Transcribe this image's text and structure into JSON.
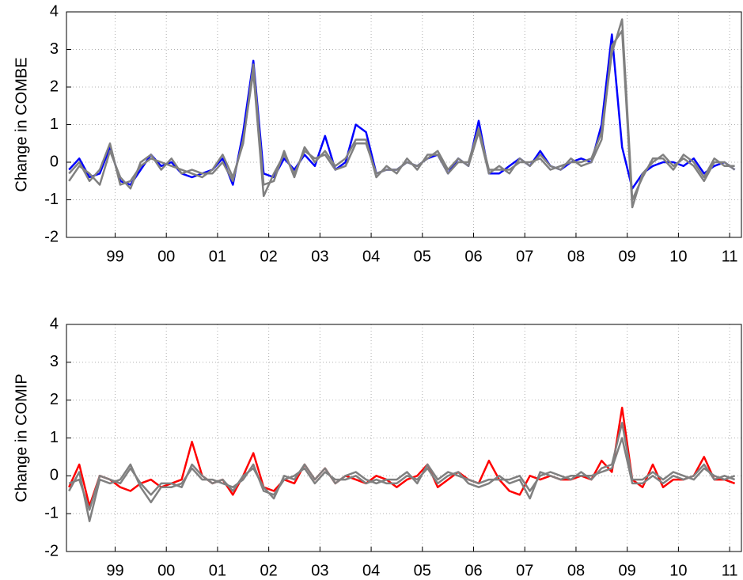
{
  "chart_data": [
    {
      "type": "line",
      "ylabel": "Change in COMBE",
      "x": [
        1998.1,
        1998.3,
        1998.5,
        1998.7,
        1998.9,
        1999.1,
        1999.3,
        1999.5,
        1999.7,
        1999.9,
        2000.1,
        2000.3,
        2000.5,
        2000.7,
        2000.9,
        2001.1,
        2001.3,
        2001.5,
        2001.7,
        2001.9,
        2002.1,
        2002.3,
        2002.5,
        2002.7,
        2002.9,
        2003.1,
        2003.3,
        2003.5,
        2003.7,
        2003.9,
        2004.1,
        2004.3,
        2004.5,
        2004.7,
        2004.9,
        2005.1,
        2005.3,
        2005.5,
        2005.7,
        2005.9,
        2006.1,
        2006.3,
        2006.5,
        2006.7,
        2006.9,
        2007.1,
        2007.3,
        2007.5,
        2007.7,
        2007.9,
        2008.1,
        2008.3,
        2008.5,
        2008.7,
        2008.9,
        2009.1,
        2009.3,
        2009.5,
        2009.7,
        2009.9,
        2010.1,
        2010.3,
        2010.5,
        2010.7,
        2010.9,
        2011.1
      ],
      "series": [
        {
          "color": "#0000ff",
          "values": [
            -0.2,
            0.1,
            -0.4,
            -0.3,
            0.4,
            -0.5,
            -0.6,
            -0.2,
            0.2,
            -0.1,
            0.0,
            -0.3,
            -0.4,
            -0.3,
            -0.2,
            0.1,
            -0.6,
            0.8,
            2.7,
            -0.3,
            -0.4,
            0.1,
            -0.2,
            0.2,
            -0.1,
            0.7,
            -0.2,
            0.0,
            1.0,
            0.8,
            -0.3,
            -0.2,
            -0.2,
            0.0,
            -0.1,
            0.1,
            0.2,
            -0.3,
            0.1,
            -0.1,
            1.1,
            -0.3,
            -0.3,
            -0.1,
            0.1,
            -0.1,
            0.3,
            -0.1,
            -0.2,
            0.0,
            0.1,
            0.0,
            1.0,
            3.4,
            0.4,
            -0.7,
            -0.3,
            -0.1,
            0.0,
            0.0,
            -0.1,
            0.1,
            -0.3,
            -0.1,
            0.0,
            -0.2
          ]
        },
        {
          "color": "#808080",
          "values": [
            -0.3,
            0.0,
            -0.5,
            -0.2,
            0.5,
            -0.6,
            -0.5,
            -0.1,
            0.1,
            0.0,
            -0.1,
            -0.2,
            -0.3,
            -0.4,
            -0.2,
            0.2,
            -0.4,
            0.5,
            2.6,
            -0.6,
            -0.5,
            0.3,
            -0.4,
            0.4,
            0.0,
            0.3,
            -0.1,
            0.1,
            0.6,
            0.6,
            -0.4,
            -0.1,
            -0.3,
            0.1,
            -0.2,
            0.2,
            0.2,
            -0.3,
            0.0,
            0.0,
            0.9,
            -0.2,
            -0.2,
            -0.2,
            0.0,
            0.0,
            0.1,
            -0.2,
            -0.1,
            0.0,
            0.0,
            0.1,
            0.8,
            2.9,
            3.8,
            -1.0,
            -0.4,
            0.1,
            0.1,
            -0.2,
            0.2,
            0.0,
            -0.4,
            0.1,
            -0.1,
            -0.1
          ]
        },
        {
          "color": "#808080",
          "values": [
            -0.5,
            -0.1,
            -0.3,
            -0.6,
            0.3,
            -0.4,
            -0.7,
            0.0,
            0.2,
            -0.2,
            0.1,
            -0.3,
            -0.2,
            -0.3,
            -0.3,
            0.0,
            -0.5,
            0.6,
            2.4,
            -0.9,
            -0.3,
            0.2,
            -0.3,
            0.3,
            0.1,
            0.2,
            -0.2,
            -0.1,
            0.5,
            0.5,
            -0.3,
            -0.2,
            -0.2,
            0.0,
            -0.1,
            0.1,
            0.3,
            -0.2,
            0.1,
            -0.1,
            0.8,
            -0.3,
            -0.1,
            -0.3,
            0.1,
            -0.1,
            0.2,
            -0.1,
            -0.2,
            0.1,
            -0.1,
            0.0,
            0.6,
            3.1,
            3.5,
            -1.2,
            -0.3,
            0.0,
            0.2,
            -0.1,
            0.1,
            -0.1,
            -0.5,
            0.0,
            0.0,
            -0.2
          ]
        }
      ],
      "xlim": [
        1998.05,
        2011.23
      ],
      "xticks": [
        {
          "value": 1999,
          "label": "99"
        },
        {
          "value": 2000,
          "label": "00"
        },
        {
          "value": 2001,
          "label": "01"
        },
        {
          "value": 2002,
          "label": "02"
        },
        {
          "value": 2003,
          "label": "03"
        },
        {
          "value": 2004,
          "label": "04"
        },
        {
          "value": 2005,
          "label": "05"
        },
        {
          "value": 2006,
          "label": "06"
        },
        {
          "value": 2007,
          "label": "07"
        },
        {
          "value": 2008,
          "label": "08"
        },
        {
          "value": 2009,
          "label": "09"
        },
        {
          "value": 2010,
          "label": "10"
        },
        {
          "value": 2011,
          "label": "11"
        }
      ],
      "ylim": [
        -2,
        4
      ],
      "yticks": [
        -2,
        -1,
        0,
        1,
        2,
        3,
        4
      ],
      "grid": true
    },
    {
      "type": "line",
      "ylabel": "Change in COMIP",
      "x": [
        1998.1,
        1998.3,
        1998.5,
        1998.7,
        1998.9,
        1999.1,
        1999.3,
        1999.5,
        1999.7,
        1999.9,
        2000.1,
        2000.3,
        2000.5,
        2000.7,
        2000.9,
        2001.1,
        2001.3,
        2001.5,
        2001.7,
        2001.9,
        2002.1,
        2002.3,
        2002.5,
        2002.7,
        2002.9,
        2003.1,
        2003.3,
        2003.5,
        2003.7,
        2003.9,
        2004.1,
        2004.3,
        2004.5,
        2004.7,
        2004.9,
        2005.1,
        2005.3,
        2005.5,
        2005.7,
        2005.9,
        2006.1,
        2006.3,
        2006.5,
        2006.7,
        2006.9,
        2007.1,
        2007.3,
        2007.5,
        2007.7,
        2007.9,
        2008.1,
        2008.3,
        2008.5,
        2008.7,
        2008.9,
        2009.1,
        2009.3,
        2009.5,
        2009.7,
        2009.9,
        2010.1,
        2010.3,
        2010.5,
        2010.7,
        2010.9,
        2011.1
      ],
      "series": [
        {
          "color": "#ff0000",
          "values": [
            -0.3,
            0.3,
            -0.8,
            0.0,
            -0.1,
            -0.3,
            -0.4,
            -0.2,
            -0.1,
            -0.3,
            -0.2,
            -0.1,
            0.9,
            0.0,
            -0.2,
            -0.1,
            -0.5,
            0.0,
            0.6,
            -0.3,
            -0.4,
            -0.1,
            -0.2,
            0.3,
            -0.1,
            0.2,
            -0.2,
            0.0,
            -0.1,
            -0.2,
            0.0,
            -0.1,
            -0.3,
            -0.1,
            0.0,
            0.3,
            -0.3,
            -0.1,
            0.1,
            -0.1,
            -0.2,
            0.4,
            -0.1,
            -0.4,
            -0.5,
            0.0,
            -0.1,
            0.0,
            -0.1,
            -0.1,
            0.0,
            -0.1,
            0.4,
            0.1,
            1.8,
            -0.1,
            -0.3,
            0.3,
            -0.3,
            -0.1,
            -0.1,
            0.0,
            0.5,
            -0.1,
            -0.1,
            -0.2
          ]
        },
        {
          "color": "#808080",
          "values": [
            -0.4,
            0.1,
            -1.2,
            -0.1,
            -0.2,
            -0.1,
            0.3,
            -0.3,
            -0.7,
            -0.3,
            -0.3,
            -0.2,
            0.2,
            -0.1,
            -0.1,
            -0.2,
            -0.3,
            -0.1,
            0.3,
            -0.4,
            -0.5,
            -0.1,
            0.0,
            0.2,
            -0.2,
            0.1,
            -0.1,
            -0.1,
            0.0,
            -0.2,
            -0.1,
            -0.2,
            -0.2,
            0.0,
            -0.1,
            0.2,
            -0.2,
            0.0,
            0.1,
            -0.2,
            -0.3,
            -0.2,
            0.0,
            -0.2,
            -0.1,
            -0.6,
            0.1,
            0.0,
            -0.1,
            0.0,
            0.0,
            0.0,
            0.1,
            0.2,
            1.0,
            -0.2,
            -0.2,
            0.0,
            -0.2,
            0.0,
            -0.1,
            0.0,
            0.3,
            -0.1,
            0.0,
            -0.1
          ]
        },
        {
          "color": "#808080",
          "values": [
            -0.2,
            -0.1,
            -0.9,
            0.0,
            -0.1,
            -0.2,
            0.2,
            -0.2,
            -0.5,
            -0.2,
            -0.2,
            -0.3,
            0.3,
            0.0,
            -0.2,
            -0.1,
            -0.4,
            0.0,
            0.2,
            -0.3,
            -0.6,
            0.0,
            -0.1,
            0.3,
            -0.1,
            0.2,
            -0.2,
            0.0,
            0.1,
            -0.1,
            -0.2,
            -0.1,
            -0.1,
            0.1,
            -0.2,
            0.3,
            -0.1,
            0.1,
            0.0,
            -0.1,
            -0.2,
            -0.1,
            -0.1,
            -0.1,
            0.0,
            -0.4,
            0.0,
            0.1,
            0.0,
            -0.1,
            0.1,
            -0.1,
            0.2,
            0.3,
            1.4,
            -0.1,
            -0.1,
            0.1,
            -0.1,
            0.1,
            0.0,
            -0.1,
            0.2,
            0.0,
            -0.1,
            0.0
          ]
        }
      ],
      "xlim": [
        1998.05,
        2011.23
      ],
      "xticks": [
        {
          "value": 1999,
          "label": "99"
        },
        {
          "value": 2000,
          "label": "00"
        },
        {
          "value": 2001,
          "label": "01"
        },
        {
          "value": 2002,
          "label": "02"
        },
        {
          "value": 2003,
          "label": "03"
        },
        {
          "value": 2004,
          "label": "04"
        },
        {
          "value": 2005,
          "label": "05"
        },
        {
          "value": 2006,
          "label": "06"
        },
        {
          "value": 2007,
          "label": "07"
        },
        {
          "value": 2008,
          "label": "08"
        },
        {
          "value": 2009,
          "label": "09"
        },
        {
          "value": 2010,
          "label": "10"
        },
        {
          "value": 2011,
          "label": "11"
        }
      ],
      "ylim": [
        -2,
        4
      ],
      "yticks": [
        -2,
        -1,
        0,
        1,
        2,
        3,
        4
      ],
      "grid": true
    }
  ]
}
